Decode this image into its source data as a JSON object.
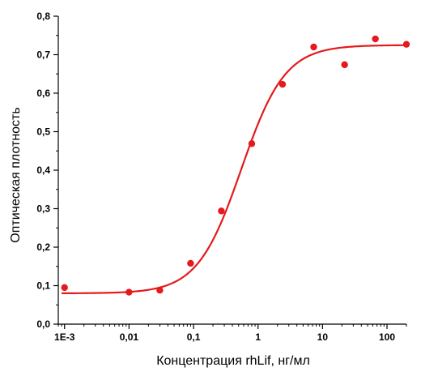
{
  "chart_data": {
    "type": "scatter",
    "title": "",
    "xlabel": "Концентрация rhLif, нг/мл",
    "ylabel": "Оптическая плотность",
    "xscale": "log",
    "xlim": [
      0.0008,
      200
    ],
    "ylim": [
      0,
      0.8
    ],
    "grid": false,
    "legend": "none",
    "x_ticks": [
      {
        "value": 0.001,
        "label": "1E-3"
      },
      {
        "value": 0.01,
        "label": "0,01"
      },
      {
        "value": 0.1,
        "label": "0,1"
      },
      {
        "value": 1,
        "label": "1"
      },
      {
        "value": 10,
        "label": "10"
      },
      {
        "value": 100,
        "label": "100"
      }
    ],
    "y_ticks": [
      {
        "value": 0.0,
        "label": "0,0"
      },
      {
        "value": 0.1,
        "label": "0,1"
      },
      {
        "value": 0.2,
        "label": "0,2"
      },
      {
        "value": 0.3,
        "label": "0,3"
      },
      {
        "value": 0.4,
        "label": "0,4"
      },
      {
        "value": 0.5,
        "label": "0,5"
      },
      {
        "value": 0.6,
        "label": "0,6"
      },
      {
        "value": 0.7,
        "label": "0,7"
      },
      {
        "value": 0.8,
        "label": "0,8"
      }
    ],
    "series": [
      {
        "points": [
          {
            "x": 0.001,
            "y": 0.095
          },
          {
            "x": 0.01,
            "y": 0.083
          },
          {
            "x": 0.03,
            "y": 0.088
          },
          {
            "x": 0.09,
            "y": 0.158
          },
          {
            "x": 0.27,
            "y": 0.294
          },
          {
            "x": 0.8,
            "y": 0.469
          },
          {
            "x": 2.4,
            "y": 0.623
          },
          {
            "x": 7.3,
            "y": 0.72
          },
          {
            "x": 22,
            "y": 0.674
          },
          {
            "x": 66,
            "y": 0.741
          },
          {
            "x": 200,
            "y": 0.727
          }
        ],
        "fit": {
          "model": "4PL",
          "bottom": 0.08,
          "top": 0.725,
          "ec50": 0.55,
          "hill": 1.28,
          "x_range": [
            0.0009,
            200
          ]
        }
      }
    ],
    "colors": {
      "series": "#e41a1c",
      "axis": "#000000"
    }
  }
}
